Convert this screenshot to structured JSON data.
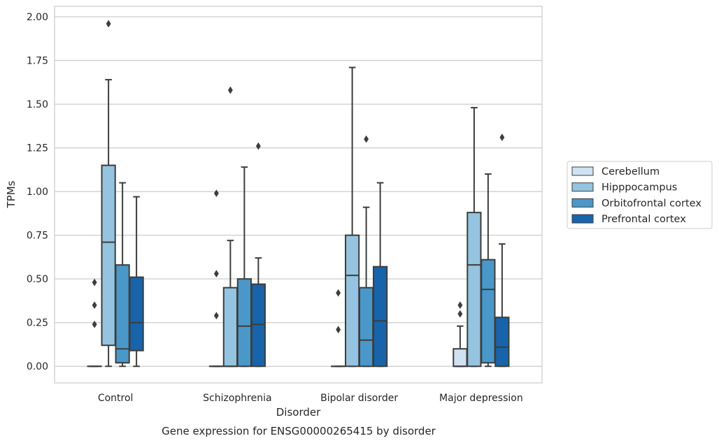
{
  "chart_data": {
    "type": "boxplot",
    "title": "Gene expression for ENSG00000265415 by disorder",
    "xlabel": "Disorder",
    "ylabel": "TPMs",
    "ylim": [
      -0.095,
      2.06
    ],
    "yticks": [
      "0.00",
      "0.25",
      "0.50",
      "0.75",
      "1.00",
      "1.25",
      "1.50",
      "1.75",
      "2.00"
    ],
    "grid": "horizontal",
    "legend_position": "right",
    "categories": [
      "Control",
      "Schizophrenia",
      "Bipolar disorder",
      "Major depression"
    ],
    "series": [
      {
        "name": "Cerebellum",
        "color": "#d0e1f2",
        "boxes": [
          {
            "min": 0,
            "q1": 0,
            "median": 0,
            "q3": 0,
            "max": 0,
            "outliers": [
              0.48,
              0.35,
              0.24
            ]
          },
          {
            "min": 0,
            "q1": 0,
            "median": 0,
            "q3": 0,
            "max": 0,
            "outliers": [
              0.99,
              0.53,
              0.29
            ]
          },
          {
            "min": 0,
            "q1": 0,
            "median": 0,
            "q3": 0,
            "max": 0,
            "outliers": [
              0.42,
              0.21
            ]
          },
          {
            "min": 0,
            "q1": 0,
            "median": 0,
            "q3": 0.1,
            "max": 0.23,
            "outliers": [
              0.35,
              0.3
            ]
          }
        ]
      },
      {
        "name": "Hipppocampus",
        "color": "#94c4df",
        "boxes": [
          {
            "min": 0,
            "q1": 0.12,
            "median": 0.71,
            "q3": 1.15,
            "max": 1.64,
            "outliers": [
              1.96
            ]
          },
          {
            "min": 0,
            "q1": 0,
            "median": 0,
            "q3": 0.45,
            "max": 0.72,
            "outliers": [
              1.58
            ]
          },
          {
            "min": 0,
            "q1": 0,
            "median": 0.52,
            "q3": 0.75,
            "max": 1.71,
            "outliers": []
          },
          {
            "min": 0,
            "q1": 0,
            "median": 0.58,
            "q3": 0.88,
            "max": 1.48,
            "outliers": []
          }
        ]
      },
      {
        "name": "Orbitofrontal cortex",
        "color": "#4a98c9",
        "boxes": [
          {
            "min": 0,
            "q1": 0.02,
            "median": 0.1,
            "q3": 0.58,
            "max": 1.05,
            "outliers": []
          },
          {
            "min": 0,
            "q1": 0,
            "median": 0.23,
            "q3": 0.5,
            "max": 1.14,
            "outliers": []
          },
          {
            "min": 0,
            "q1": 0,
            "median": 0.15,
            "q3": 0.45,
            "max": 0.91,
            "outliers": [
              1.3
            ]
          },
          {
            "min": 0,
            "q1": 0.02,
            "median": 0.44,
            "q3": 0.61,
            "max": 1.1,
            "outliers": []
          }
        ]
      },
      {
        "name": "Prefrontal cortex",
        "color": "#1764ab",
        "boxes": [
          {
            "min": 0,
            "q1": 0.09,
            "median": 0.25,
            "q3": 0.51,
            "max": 0.97,
            "outliers": []
          },
          {
            "min": 0,
            "q1": 0,
            "median": 0.24,
            "q3": 0.47,
            "max": 0.62,
            "outliers": [
              1.26
            ]
          },
          {
            "min": 0,
            "q1": 0,
            "median": 0.26,
            "q3": 0.57,
            "max": 1.05,
            "outliers": []
          },
          {
            "min": 0,
            "q1": 0,
            "median": 0.11,
            "q3": 0.28,
            "max": 0.7,
            "outliers": [
              1.31
            ]
          }
        ]
      }
    ]
  }
}
